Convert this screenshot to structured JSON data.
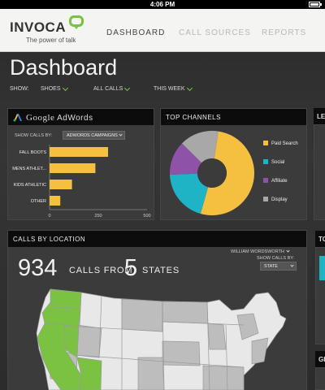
{
  "status_bar": {
    "time": "4:06 PM"
  },
  "brand": {
    "name": "INVOCA",
    "tagline": "The power of talk"
  },
  "nav": {
    "tabs": [
      "DASHBOARD",
      "CALL SOURCES",
      "REPORTS"
    ],
    "active_index": 0
  },
  "page": {
    "title": "Dashboard"
  },
  "filters": {
    "show_label": "SHOW:",
    "campaign": "SHOES",
    "calls": "ALL CALLS",
    "period": "THIS WEEK"
  },
  "adwords_panel": {
    "title_google": "Google",
    "title_product": "AdWords",
    "show_calls_by_label": "SHOW CALLS BY:",
    "show_calls_by_value": "ADWORDS CAMPAIGNS",
    "chart_data": {
      "type": "bar",
      "orientation": "horizontal",
      "categories": [
        "FALL BOOTS",
        "MENS ATHLET...",
        "KIDS ATHLETIC",
        "OTHER"
      ],
      "values": [
        300,
        235,
        115,
        55
      ],
      "xlim": [
        0,
        500
      ],
      "xticks": [
        "0",
        "250",
        "500"
      ],
      "bar_color": "#f5c040"
    }
  },
  "channels_panel": {
    "title": "TOP CHANNELS",
    "chart_data": {
      "type": "pie",
      "style": "donut",
      "categories": [
        "Paid Search",
        "Social",
        "Affiliate",
        "Display"
      ],
      "values": [
        52,
        20,
        13,
        15
      ],
      "colors": [
        "#f5c040",
        "#1fb3c6",
        "#8e53a8",
        "#a8a8a8"
      ]
    }
  },
  "location_panel": {
    "title": "CALLS BY LOCATION",
    "user": "WILLIAM WORDSWORTH",
    "show_calls_by_label": "SHOW CALLS BY:",
    "show_calls_by_value": "STATE",
    "total_calls": "934",
    "calls_from_text": "CALLS FROM",
    "state_count": "5",
    "states_text": "STATES",
    "map_colors": {
      "highlight": "#7cc242",
      "land": "#e8e8e8",
      "other": "#bdbdbd",
      "border": "#9a9a9a"
    }
  },
  "side_panels": [
    {
      "title_fragment": "LE"
    },
    {
      "title_fragment": "TO"
    },
    {
      "title_fragment": "GE"
    }
  ],
  "colors": {
    "accent": "#7cc242",
    "highlight_teal": "#1fb3c6"
  }
}
